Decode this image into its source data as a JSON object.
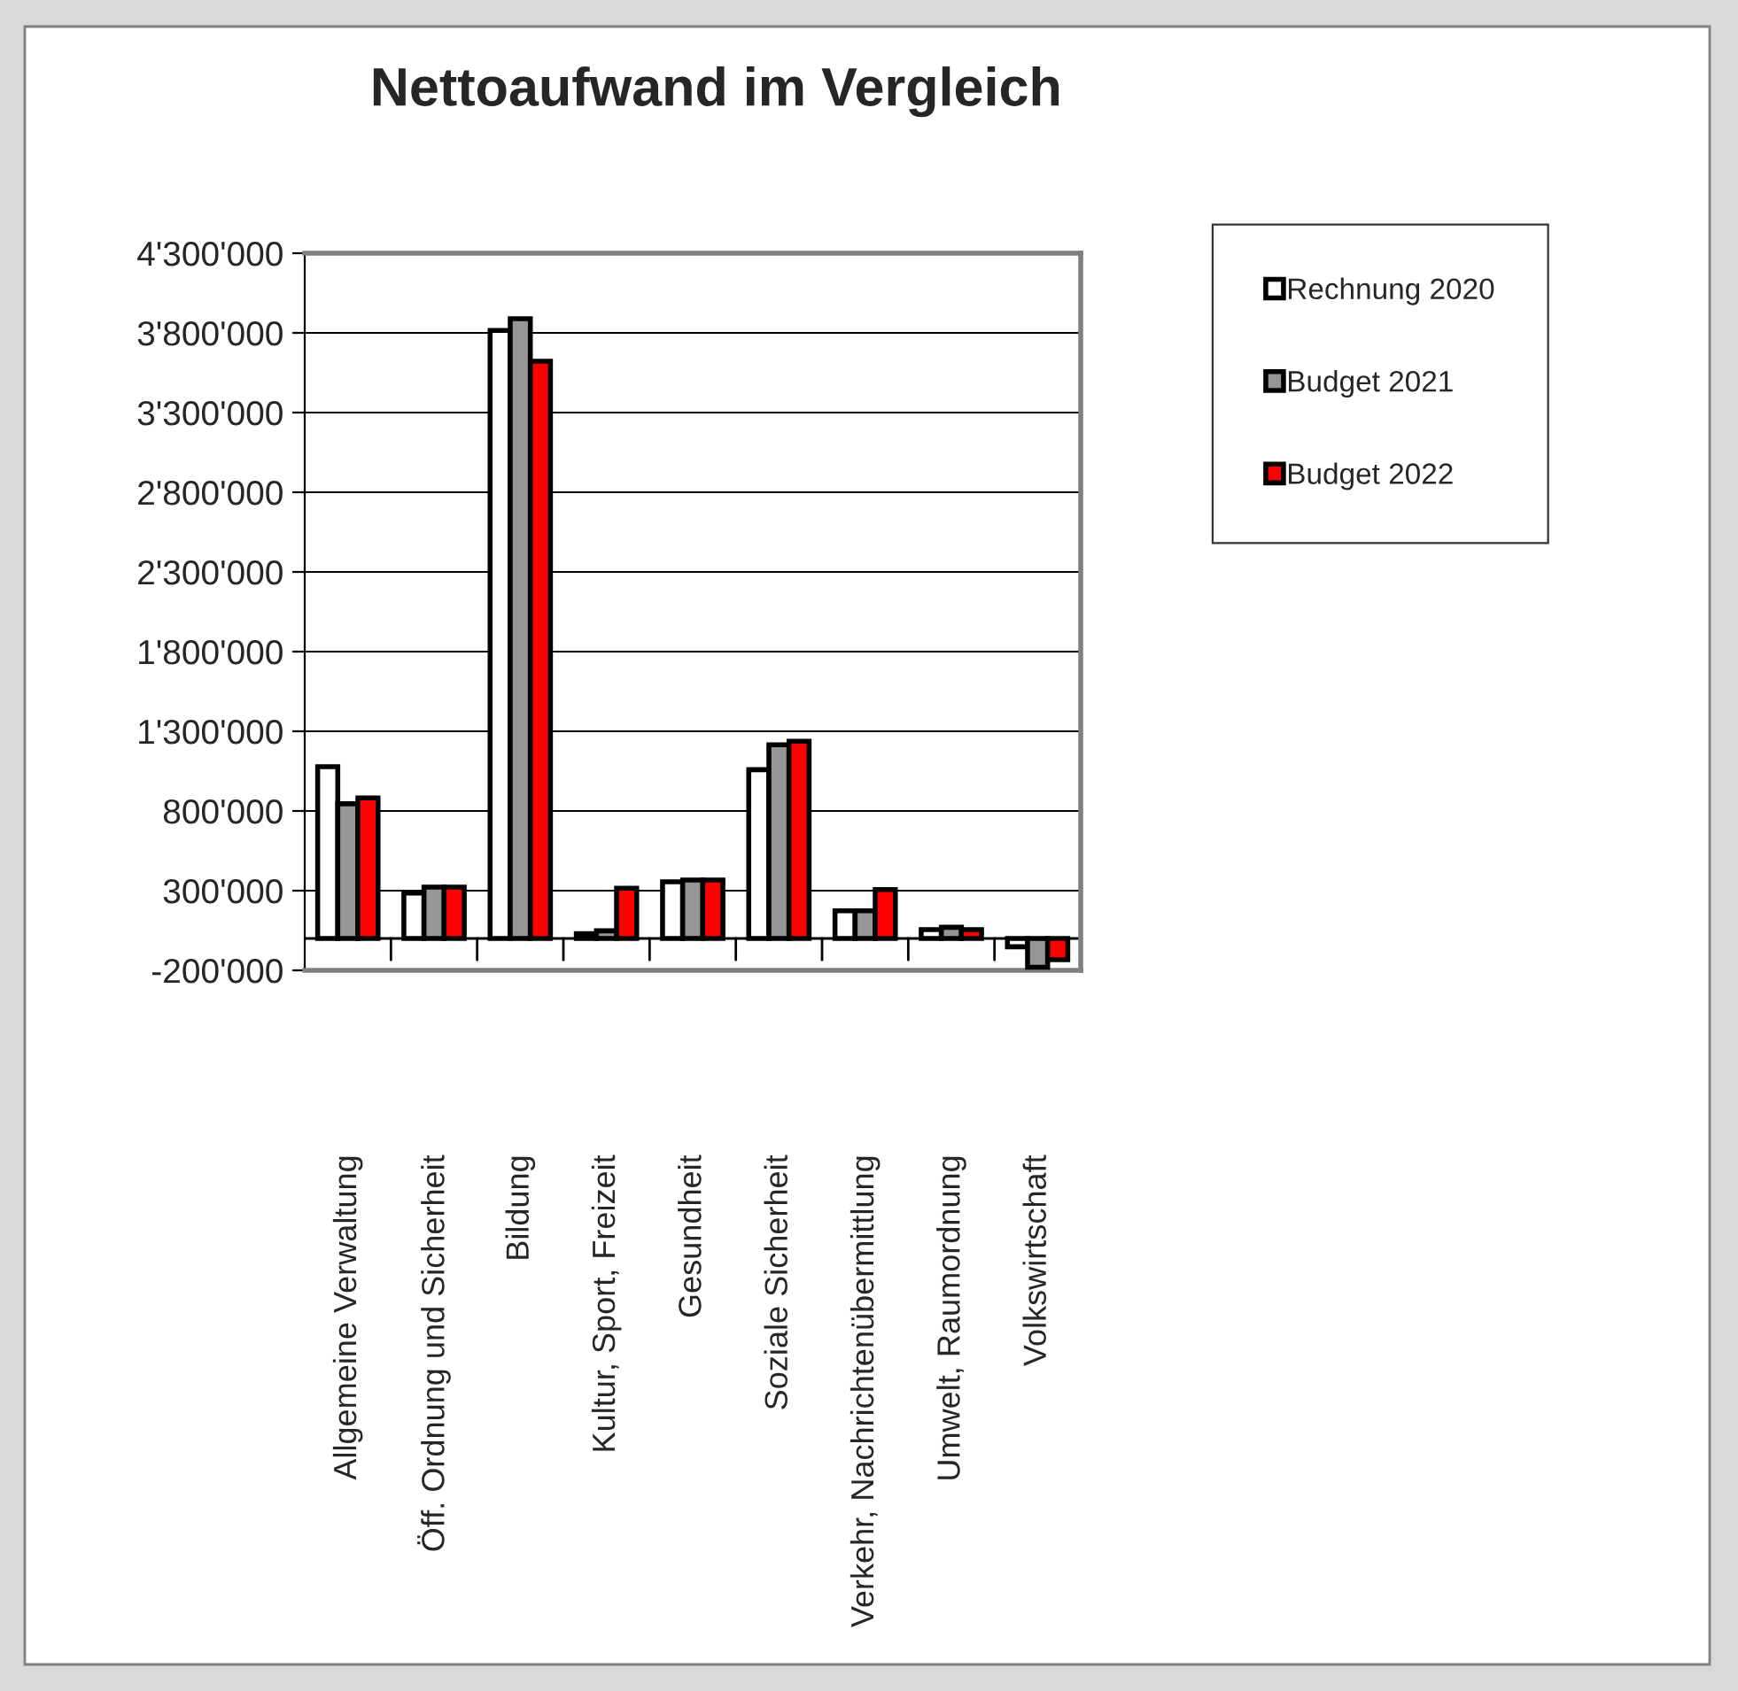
{
  "chart_data": {
    "type": "bar",
    "title": "Nettoaufwand im Vergleich",
    "categories": [
      "Allgemeine Verwaltung",
      "Öff. Ordnung und Sicherheit",
      "Bildung",
      "Kultur, Sport, Freizeit",
      "Gesundheit",
      "Soziale Sicherheit",
      "Verkehr, Nachrichtenübermittlung",
      "Umwelt, Raumordnung",
      "Volkswirtschaft"
    ],
    "series": [
      {
        "name": "Rechnung 2020",
        "color": "#ffffff",
        "values": [
          1078000,
          285000,
          3815000,
          30000,
          356000,
          1059000,
          174000,
          56000,
          -52000
        ]
      },
      {
        "name": "Budget 2021",
        "color": "#969696",
        "values": [
          845000,
          322000,
          3889000,
          48000,
          367000,
          1215000,
          174000,
          70000,
          -181000
        ]
      },
      {
        "name": "Budget 2022",
        "color": "#ff0000",
        "values": [
          882000,
          322000,
          3622000,
          315000,
          367000,
          1237000,
          307000,
          56000,
          -133000
        ]
      }
    ],
    "ylim": [
      -200000,
      4300000
    ],
    "yticks": [
      {
        "value": -200000,
        "label": "-200'000"
      },
      {
        "value": 300000,
        "label": "300'000"
      },
      {
        "value": 800000,
        "label": "800'000"
      },
      {
        "value": 1300000,
        "label": "1'300'000"
      },
      {
        "value": 1800000,
        "label": "1'800'000"
      },
      {
        "value": 2300000,
        "label": "2'300'000"
      },
      {
        "value": 2800000,
        "label": "2'800'000"
      },
      {
        "value": 3300000,
        "label": "3'300'000"
      },
      {
        "value": 3800000,
        "label": "3'800'000"
      },
      {
        "value": 4300000,
        "label": "4'300'000"
      }
    ],
    "grid": "y",
    "legend": "top right"
  }
}
